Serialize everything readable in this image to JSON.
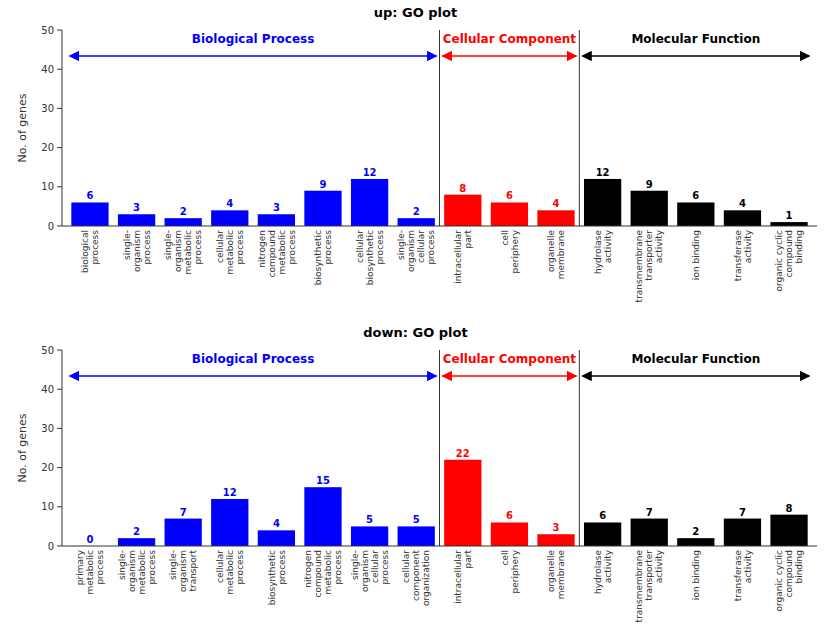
{
  "chart_data": [
    {
      "type": "bar",
      "title": "up: GO plot",
      "ylabel": "No. of genes",
      "ylim": [
        0,
        50
      ],
      "yticks": [
        0,
        10,
        20,
        30,
        40,
        50
      ],
      "data_labels": true,
      "series": [
        {
          "name": "Biological Process",
          "color": "#0000FF",
          "categories": [
            "biological\nprocess",
            "single-\norganism\nprocess",
            "single-\norganism\nmetabolic\nprocess",
            "cellular\nmetabolic\nprocess",
            "nitrogen\ncompound\nmetabolic\nprocess",
            "biosynthetic\nprocess",
            "cellular\nbiosynthetic\nprocess",
            "single-\norganism\ncellular\nprocess"
          ],
          "values": [
            6,
            3,
            2,
            4,
            3,
            9,
            12,
            2
          ]
        },
        {
          "name": "Cellular Component",
          "color": "#FF0000",
          "categories": [
            "intracellular\npart",
            "cell\nperiphery",
            "organelle\nmembrane"
          ],
          "values": [
            8,
            6,
            4
          ]
        },
        {
          "name": "Molecular Function",
          "color": "#000000",
          "categories": [
            "hydrolase\nactivity",
            "transmembrane\ntransporter\nactivity",
            "ion binding",
            "transferase\nactivity",
            "organic cyclic\ncompound\nbinding"
          ],
          "values": [
            12,
            9,
            6,
            4,
            1
          ]
        }
      ]
    },
    {
      "type": "bar",
      "title": "down: GO plot",
      "ylabel": "No. of genes",
      "ylim": [
        0,
        50
      ],
      "yticks": [
        0,
        10,
        20,
        30,
        40,
        50
      ],
      "data_labels": true,
      "series": [
        {
          "name": "Biological Process",
          "color": "#0000FF",
          "categories": [
            "primary\nmetabolic\nprocess",
            "single-\norganism\nmetabolic\nprocess",
            "single-\norganism\ntransport",
            "cellular\nmetabolic\nprocess",
            "biosynthetic\nprocess",
            "nitrogen\ncompound\nmetabolic\nprocess",
            "single-\norganism\ncellular\nprocess",
            "cellular\ncomponent\norganization"
          ],
          "values": [
            0,
            2,
            7,
            12,
            4,
            15,
            5,
            5
          ]
        },
        {
          "name": "Cellular Component",
          "color": "#FF0000",
          "categories": [
            "intracellular\npart",
            "cell\nperiphery",
            "organelle\nmembrane"
          ],
          "values": [
            22,
            6,
            3
          ]
        },
        {
          "name": "Molecular Function",
          "color": "#000000",
          "categories": [
            "hydrolase\nactivity",
            "transmembrane\ntransporter\nactivity",
            "ion binding",
            "transferase\nactivity",
            "organic cyclic\ncompound\nbinding"
          ],
          "values": [
            6,
            7,
            2,
            7,
            8
          ]
        }
      ]
    }
  ]
}
